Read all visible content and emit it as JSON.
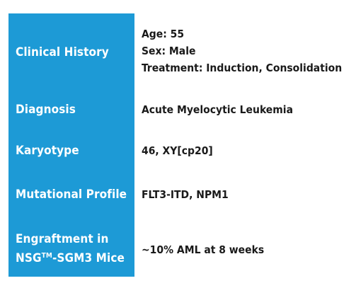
{
  "rows": [
    {
      "label": "Clinical History",
      "values": [
        "Age: 55",
        "Sex: Male",
        "Treatment: Induction, Consolidation"
      ]
    },
    {
      "label": "Diagnosis",
      "values": [
        "Acute Myelocytic Leukemia"
      ]
    },
    {
      "label": "Karyotype",
      "values": [
        "46, XY[cp20]"
      ]
    },
    {
      "label": "Mutational Profile",
      "values": [
        "FLT3-ITD, NPM1"
      ]
    },
    {
      "label_lines": [
        "Engraftment in",
        "NSG",
        "TM",
        "-SGM3 Mice"
      ],
      "values": [
        "~10% AML at 8 weeks"
      ]
    }
  ],
  "colors": {
    "panel": "#1d9ad6",
    "label_text": "#ffffff",
    "value_text": "#1a1a1a"
  }
}
